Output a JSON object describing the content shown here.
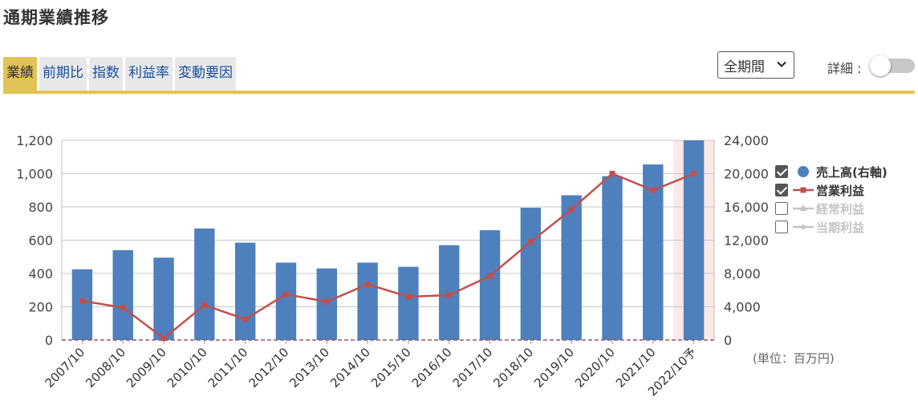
{
  "header": {
    "title": "通期業績推移"
  },
  "tabs": [
    {
      "label": "業績",
      "active": true
    },
    {
      "label": "前期比",
      "active": false
    },
    {
      "label": "指数",
      "active": false
    },
    {
      "label": "利益率",
      "active": false
    },
    {
      "label": "変動要因",
      "active": false
    }
  ],
  "controls": {
    "period_select": "全期間",
    "detail_label": "詳細 :",
    "detail_toggle_on": false
  },
  "colors": {
    "accent": "#e2c355",
    "bar": "#4e80bd",
    "line": "#c0504d",
    "forecast_band": "#fde8e8",
    "tab_text": "#1b4f9c"
  },
  "legend": [
    {
      "label": "売上高(右軸)",
      "checked": true,
      "symbol": "circle",
      "color": "#4e80bd"
    },
    {
      "label": "営業利益",
      "checked": true,
      "symbol": "line-square",
      "color": "#c0504d"
    },
    {
      "label": "経常利益",
      "checked": false,
      "symbol": "line-triangle",
      "color": "#c4c4c4"
    },
    {
      "label": "当期利益",
      "checked": false,
      "symbol": "line-dot",
      "color": "#c4c4c4"
    }
  ],
  "unit_note": "(単位：百万円)",
  "chart_data": {
    "type": "bar",
    "categories": [
      "2007/10",
      "2008/10",
      "2009/10",
      "2010/10",
      "2011/10",
      "2012/10",
      "2013/10",
      "2014/10",
      "2015/10",
      "2016/10",
      "2017/10",
      "2018/10",
      "2019/10",
      "2020/10",
      "2021/10",
      "2022/10予"
    ],
    "y_left_ticks": [
      "0",
      "200",
      "400",
      "600",
      "800",
      "1,000",
      "1,200"
    ],
    "y_right_ticks": [
      "0",
      "4,000",
      "8,000",
      "12,000",
      "16,000",
      "20,000",
      "24,000"
    ],
    "ylim_left": [
      0,
      1200
    ],
    "ylim_right": [
      0,
      24000
    ],
    "forecast_index": 15,
    "grid": true,
    "legend_position": "right",
    "series": [
      {
        "name": "売上高(右軸)",
        "type": "bar",
        "axis": "right",
        "values": [
          8500,
          10800,
          9900,
          13400,
          11700,
          9300,
          8600,
          9300,
          8800,
          11400,
          13200,
          15900,
          17400,
          19700,
          21100,
          24000
        ]
      },
      {
        "name": "営業利益",
        "type": "line",
        "axis": "left",
        "values": [
          235,
          195,
          10,
          210,
          125,
          275,
          230,
          335,
          260,
          270,
          385,
          590,
          785,
          1000,
          900,
          1000
        ]
      }
    ]
  }
}
